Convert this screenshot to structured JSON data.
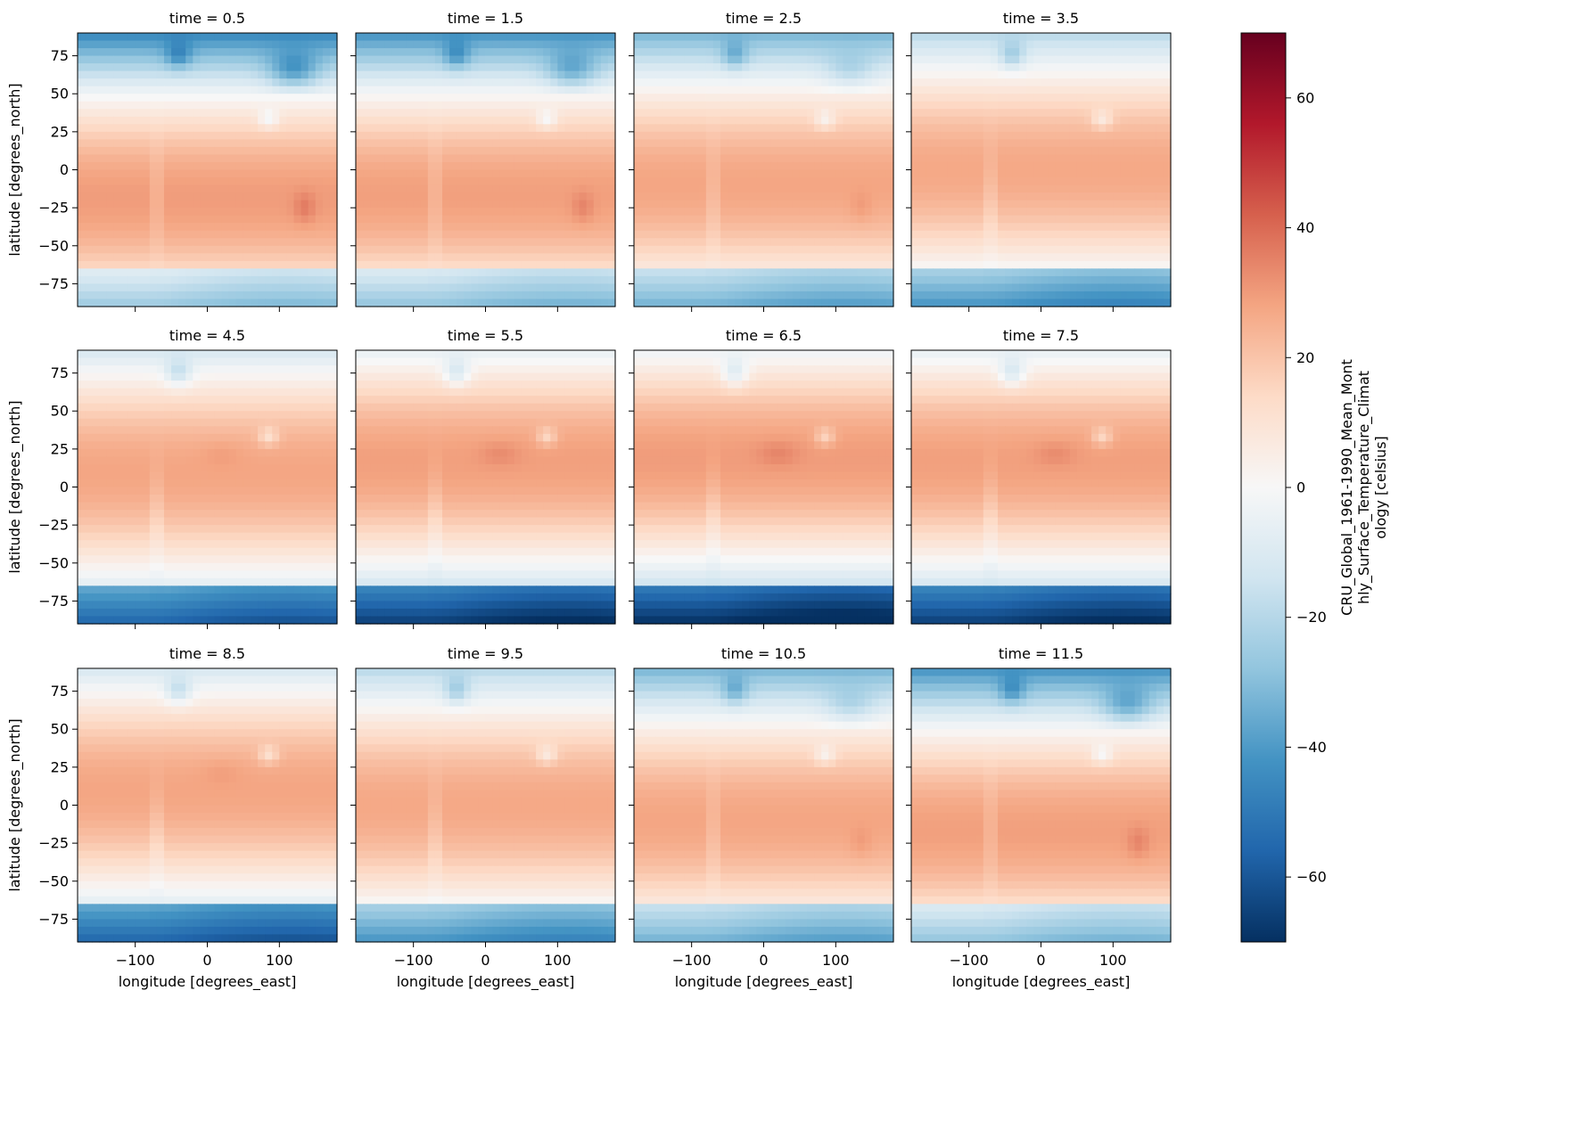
{
  "chart_data": {
    "type": "heatmap",
    "layout": "facet grid",
    "rows": 3,
    "cols": 4,
    "facet_titles": [
      "time = 0.5",
      "time = 1.5",
      "time = 2.5",
      "time = 3.5",
      "time = 4.5",
      "time = 5.5",
      "time = 6.5",
      "time = 7.5",
      "time = 8.5",
      "time = 9.5",
      "time = 10.5",
      "time = 11.5"
    ],
    "facet_times": [
      0.5,
      1.5,
      2.5,
      3.5,
      4.5,
      5.5,
      6.5,
      7.5,
      8.5,
      9.5,
      10.5,
      11.5
    ],
    "xlabel": "longitude [degrees_east]",
    "ylabel": "latitude [degrees_north]",
    "xlim": [
      -180,
      180
    ],
    "ylim": [
      -90,
      90
    ],
    "xticks": [
      -100,
      0,
      100
    ],
    "xtick_labels": [
      "−100",
      "0",
      "100"
    ],
    "yticks": [
      75,
      50,
      25,
      0,
      -25,
      -50,
      -75
    ],
    "ytick_labels": [
      "75",
      "50",
      "25",
      "0",
      "−25",
      "−50",
      "−75"
    ],
    "colorbar": {
      "label_lines": [
        "CRU_Global_1961-1990_Mean_Mont",
        "hly_Surface_Temperature_Climat",
        "ology [celsius]"
      ],
      "vmin": -70,
      "vmax": 70,
      "ticks": [
        60,
        40,
        20,
        0,
        -20,
        -40,
        -60
      ],
      "tick_labels": [
        "60",
        "40",
        "20",
        "0",
        "−20",
        "−40",
        "−60"
      ],
      "colormap": "RdBu_r"
    },
    "grid": false
  }
}
